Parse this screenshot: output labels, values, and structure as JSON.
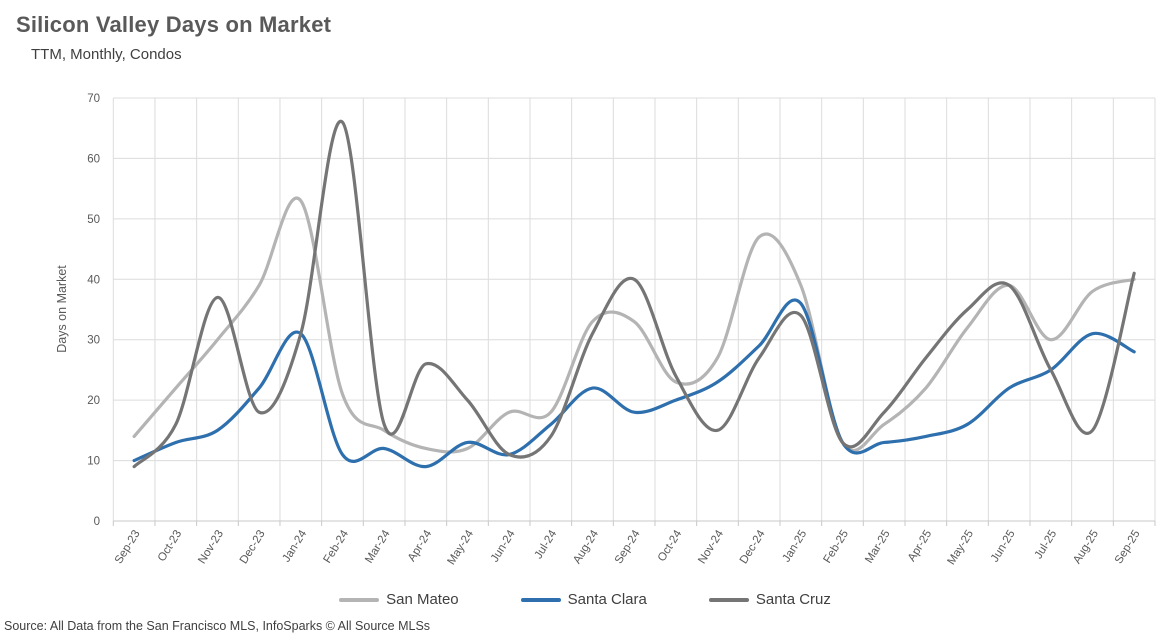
{
  "header": {
    "title": "Silicon Valley Days on Market",
    "subtitle": "TTM, Monthly, Condos"
  },
  "source_note": "Source: All Data from the San Francisco MLS, InfoSparks © All Source MLSs",
  "styles": {
    "title_color": "#595959",
    "axis_text_color": "#595959",
    "gridline_color": "#dcdcdc",
    "axis_line_color": "#c8c8c8",
    "san_mateo_color": "#b4b4b4",
    "santa_clara_color": "#2e6fad",
    "santa_cruz_color": "#757575"
  },
  "chart_data": {
    "type": "line",
    "smooth": true,
    "title": "Silicon Valley Days on Market",
    "subtitle": "TTM, Monthly, Condos",
    "xlabel": "",
    "ylabel": "Days on Market",
    "ylim": [
      0,
      70
    ],
    "yticks": [
      0,
      10,
      20,
      30,
      40,
      50,
      60,
      70
    ],
    "grid": {
      "horizontal": true,
      "vertical": true
    },
    "legend_position": "bottom",
    "categories": [
      "Sep-23",
      "Oct-23",
      "Nov-23",
      "Dec-23",
      "Jan-24",
      "Feb-24",
      "Mar-24",
      "Apr-24",
      "May-24",
      "Jun-24",
      "Jul-24",
      "Aug-24",
      "Sep-24",
      "Oct-24",
      "Nov-24",
      "Dec-24",
      "Jan-25",
      "Feb-25",
      "Mar-25",
      "Apr-25",
      "May-25",
      "Jun-25",
      "Jul-25",
      "Aug-25",
      "Sep-25"
    ],
    "series": [
      {
        "name": "San Mateo",
        "color": "#b4b4b4",
        "values": [
          14,
          22,
          30,
          39,
          53,
          21,
          15,
          12,
          12,
          18,
          18,
          33,
          33,
          23,
          27,
          47,
          39,
          13,
          16,
          22,
          32,
          39,
          30,
          38,
          40
        ]
      },
      {
        "name": "Santa Clara",
        "color": "#2e6fad",
        "values": [
          10,
          13,
          15,
          22,
          31,
          11,
          12,
          9,
          13,
          11,
          16,
          22,
          18,
          20,
          23,
          29,
          36,
          13,
          13,
          14,
          16,
          22,
          25,
          31,
          28
        ]
      },
      {
        "name": "Santa Cruz",
        "color": "#757575",
        "values": [
          9,
          16,
          37,
          18,
          31,
          66,
          16,
          26,
          20,
          11,
          14,
          31,
          40,
          24,
          15,
          27,
          34,
          13,
          18,
          27,
          35,
          39,
          25,
          15,
          41
        ]
      }
    ]
  }
}
